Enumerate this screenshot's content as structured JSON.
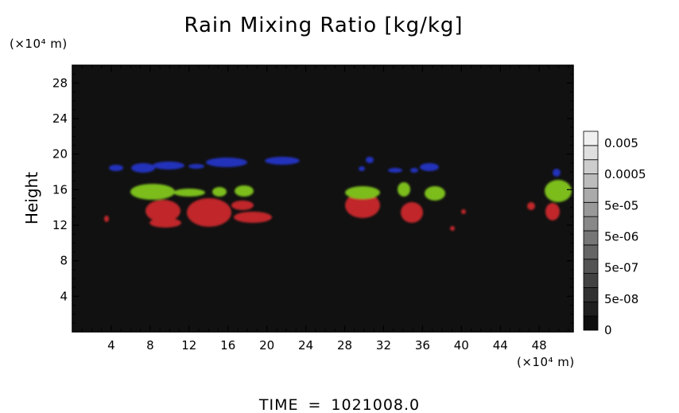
{
  "chart_data": {
    "type": "heatmap",
    "title": "Rain Mixing Ratio [kg/kg]",
    "ylabel": "Height",
    "y_unit": "(×10⁴ m)",
    "x_unit": "(×10⁴ m)",
    "xlim": [
      0,
      51.5
    ],
    "ylim": [
      0,
      30
    ],
    "x_ticks": [
      "4",
      "8",
      "12",
      "16",
      "20",
      "24",
      "28",
      "32",
      "36",
      "40",
      "44",
      "48"
    ],
    "y_ticks": [
      "4",
      "8",
      "12",
      "16",
      "20",
      "24",
      "28"
    ],
    "background_color": "#111111",
    "colorbar": {
      "labels": [
        "0.005",
        "0.0005",
        "5e-05",
        "5e-06",
        "5e-07",
        "5e-08",
        "0"
      ],
      "levels": 14
    },
    "layers": {
      "red": "#c0282a",
      "green": "#7bbd1c",
      "blue": "#2233bb"
    },
    "time_label": "TIME",
    "time_value": "1021008.0"
  }
}
